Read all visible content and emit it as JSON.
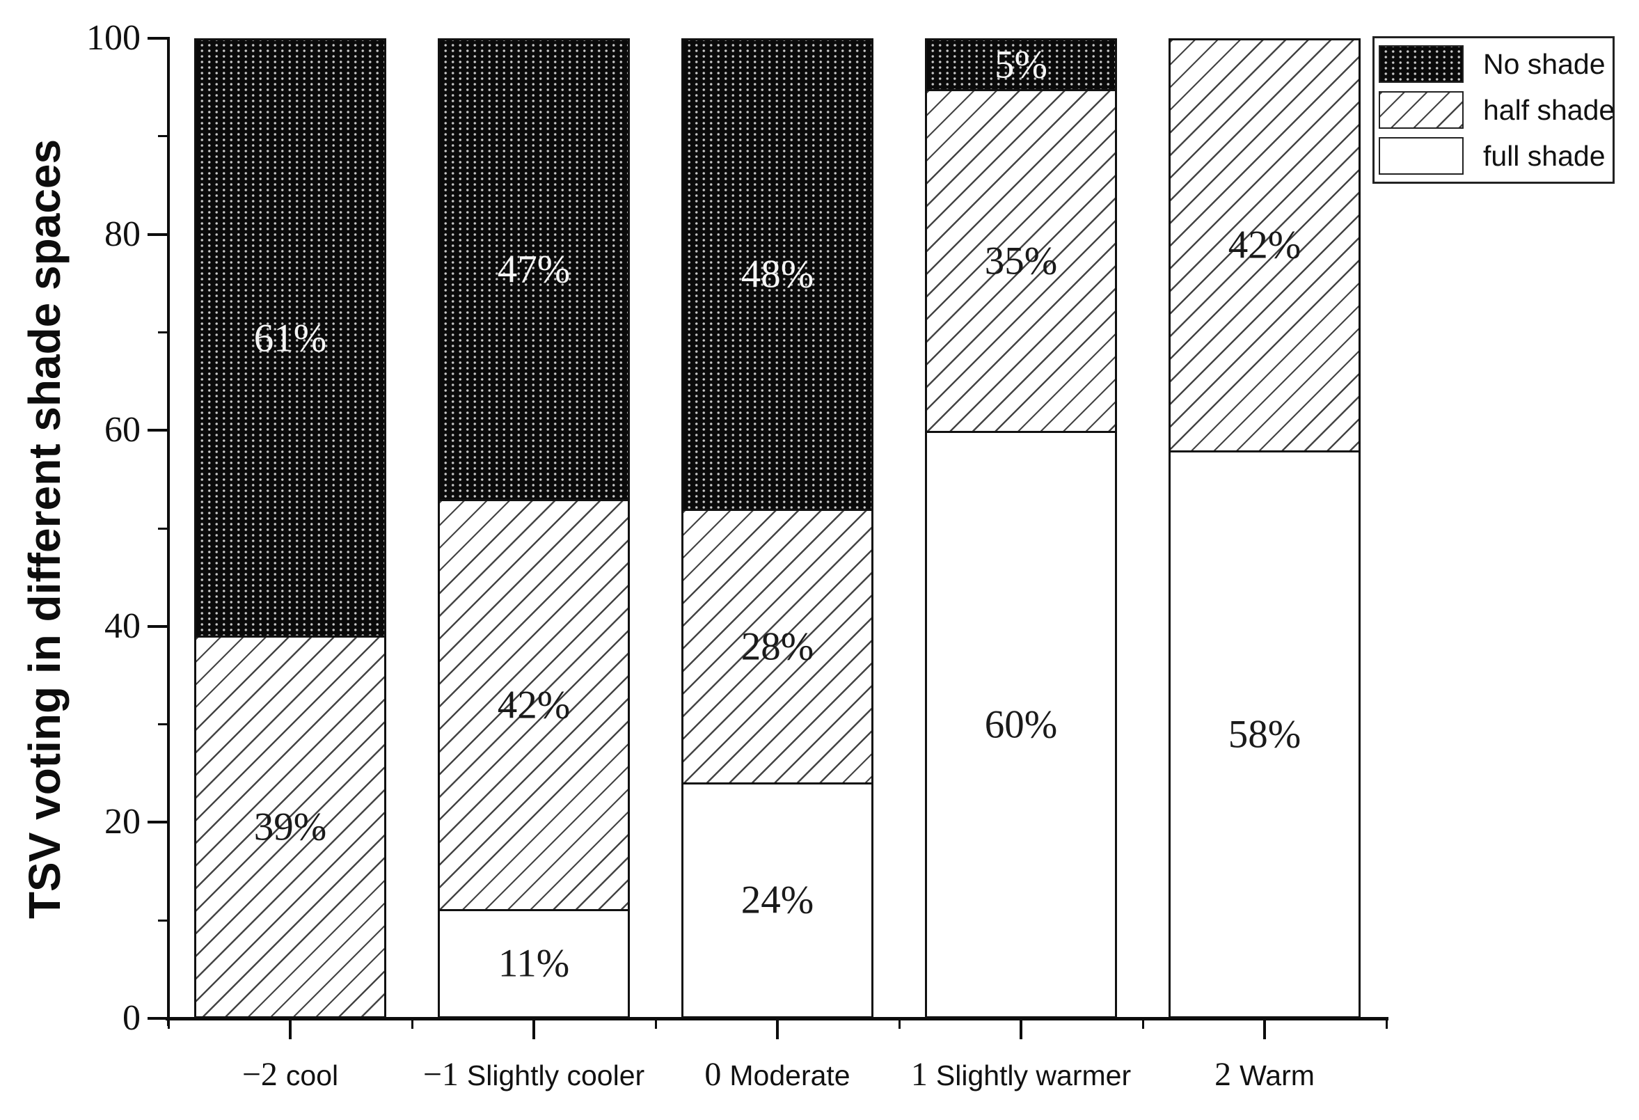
{
  "chart_data": {
    "type": "bar",
    "subtype": "stacked-percentage",
    "title": "",
    "xlabel": "",
    "ylabel": "TSV voting in different shade spaces",
    "ylim": [
      0,
      100
    ],
    "yticks": [
      0,
      20,
      40,
      60,
      80,
      100
    ],
    "yticks_minor": [
      10,
      30,
      50,
      70,
      90
    ],
    "grid": false,
    "legend_position": "top-right",
    "categories": [
      {
        "value": "−2",
        "label": "cool"
      },
      {
        "value": "−1",
        "label": "Slightly cooler"
      },
      {
        "value": "0",
        "label": "Moderate"
      },
      {
        "value": "1",
        "label": "Slightly warmer"
      },
      {
        "value": "2",
        "label": "Warm"
      }
    ],
    "series": [
      {
        "name": "full shade",
        "pattern": "full-shade",
        "values": [
          0,
          11,
          24,
          60,
          58
        ]
      },
      {
        "name": "half shade",
        "pattern": "half-shade",
        "values": [
          39,
          42,
          28,
          35,
          42
        ]
      },
      {
        "name": "No shade",
        "pattern": "no-shade",
        "values": [
          61,
          47,
          48,
          5,
          0
        ]
      }
    ],
    "bar_label_suffix": "%"
  },
  "legend": {
    "items": [
      {
        "label": "No shade",
        "pattern": "no-shade"
      },
      {
        "label": "half shade",
        "pattern": "half-shade"
      },
      {
        "label": "full shade",
        "pattern": "full-shade"
      }
    ]
  },
  "colors": {
    "foreground": "#0d0d0d",
    "background": "#ffffff",
    "no_shade_fill": "#0a0a0a",
    "hatch_line": "#444444",
    "label_on_dark": "#f5f5f5",
    "label_on_light": "#1a1a1a"
  }
}
